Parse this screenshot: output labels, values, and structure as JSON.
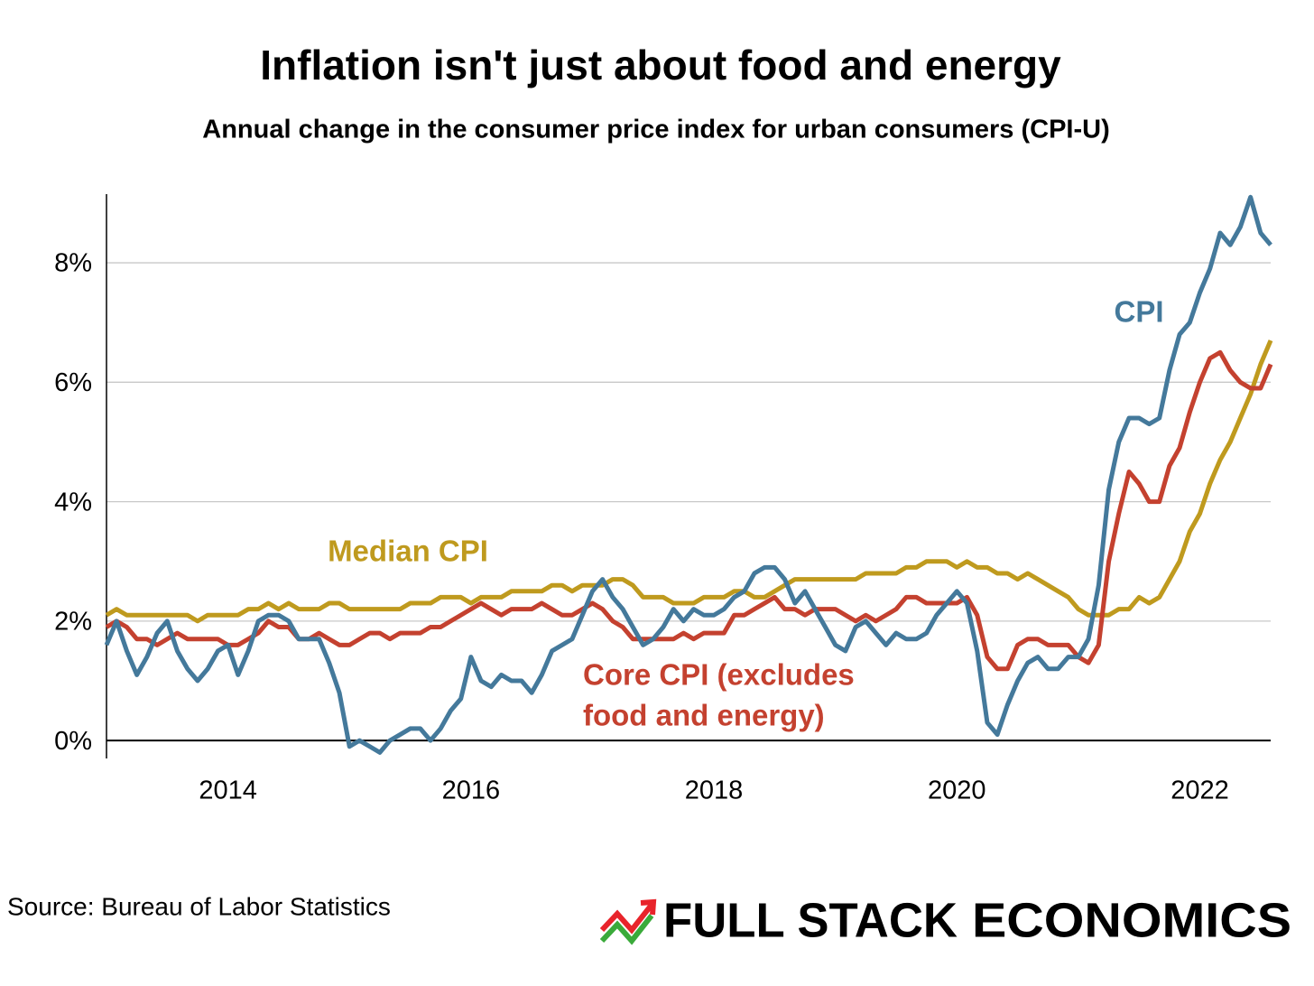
{
  "chart_data": {
    "type": "line",
    "title": "Inflation isn't just about food and energy",
    "subtitle": "Annual change in the consumer price index for urban consumers (CPI-U)",
    "source": "Source: Bureau of Labor Statistics",
    "logo": [
      "FULL STACK",
      "ECONOMICS"
    ],
    "logo_colors": [
      "#e8242b",
      "#3aaa3a"
    ],
    "xlim": [
      2013.0,
      2022.583
    ],
    "xticks": [
      2014,
      2016,
      2018,
      2020,
      2022
    ],
    "ylim": [
      -0.3,
      9.15
    ],
    "yticks": [
      {
        "value": 0,
        "label": "0%"
      },
      {
        "value": 2,
        "label": "2%"
      },
      {
        "value": 4,
        "label": "4%"
      },
      {
        "value": 6,
        "label": "6%"
      },
      {
        "value": 8,
        "label": "8%"
      }
    ],
    "grid": true,
    "x": [
      2013.0,
      2013.083,
      2013.167,
      2013.25,
      2013.333,
      2013.417,
      2013.5,
      2013.583,
      2013.667,
      2013.75,
      2013.833,
      2013.917,
      2014.0,
      2014.083,
      2014.167,
      2014.25,
      2014.333,
      2014.417,
      2014.5,
      2014.583,
      2014.667,
      2014.75,
      2014.833,
      2014.917,
      2015.0,
      2015.083,
      2015.167,
      2015.25,
      2015.333,
      2015.417,
      2015.5,
      2015.583,
      2015.667,
      2015.75,
      2015.833,
      2015.917,
      2016.0,
      2016.083,
      2016.167,
      2016.25,
      2016.333,
      2016.417,
      2016.5,
      2016.583,
      2016.667,
      2016.75,
      2016.833,
      2016.917,
      2017.0,
      2017.083,
      2017.167,
      2017.25,
      2017.333,
      2017.417,
      2017.5,
      2017.583,
      2017.667,
      2017.75,
      2017.833,
      2017.917,
      2018.0,
      2018.083,
      2018.167,
      2018.25,
      2018.333,
      2018.417,
      2018.5,
      2018.583,
      2018.667,
      2018.75,
      2018.833,
      2018.917,
      2019.0,
      2019.083,
      2019.167,
      2019.25,
      2019.333,
      2019.417,
      2019.5,
      2019.583,
      2019.667,
      2019.75,
      2019.833,
      2019.917,
      2020.0,
      2020.083,
      2020.167,
      2020.25,
      2020.333,
      2020.417,
      2020.5,
      2020.583,
      2020.667,
      2020.75,
      2020.833,
      2020.917,
      2021.0,
      2021.083,
      2021.167,
      2021.25,
      2021.333,
      2021.417,
      2021.5,
      2021.583,
      2021.667,
      2021.75,
      2021.833,
      2021.917,
      2022.0,
      2022.083,
      2022.167,
      2022.25,
      2022.333,
      2022.417,
      2022.5,
      2022.583
    ],
    "series": [
      {
        "name": "Median CPI",
        "color": "#bf9a1e",
        "values": [
          2.1,
          2.2,
          2.1,
          2.1,
          2.1,
          2.1,
          2.1,
          2.1,
          2.1,
          2.0,
          2.1,
          2.1,
          2.1,
          2.1,
          2.2,
          2.2,
          2.3,
          2.2,
          2.3,
          2.2,
          2.2,
          2.2,
          2.3,
          2.3,
          2.2,
          2.2,
          2.2,
          2.2,
          2.2,
          2.2,
          2.3,
          2.3,
          2.3,
          2.4,
          2.4,
          2.4,
          2.3,
          2.4,
          2.4,
          2.4,
          2.5,
          2.5,
          2.5,
          2.5,
          2.6,
          2.6,
          2.5,
          2.6,
          2.6,
          2.6,
          2.7,
          2.7,
          2.6,
          2.4,
          2.4,
          2.4,
          2.3,
          2.3,
          2.3,
          2.4,
          2.4,
          2.4,
          2.5,
          2.5,
          2.4,
          2.4,
          2.5,
          2.6,
          2.7,
          2.7,
          2.7,
          2.7,
          2.7,
          2.7,
          2.7,
          2.8,
          2.8,
          2.8,
          2.8,
          2.9,
          2.9,
          3.0,
          3.0,
          3.0,
          2.9,
          3.0,
          2.9,
          2.9,
          2.8,
          2.8,
          2.7,
          2.8,
          2.7,
          2.6,
          2.5,
          2.4,
          2.2,
          2.1,
          2.1,
          2.1,
          2.2,
          2.2,
          2.4,
          2.3,
          2.4,
          2.7,
          3.0,
          3.5,
          3.8,
          4.3,
          4.7,
          5.0,
          5.4,
          5.8,
          6.3,
          6.7
        ]
      },
      {
        "label_lines": [
          "Core CPI (excludes",
          "food and energy)"
        ],
        "color": "#c4412f",
        "values": [
          1.9,
          2.0,
          1.9,
          1.7,
          1.7,
          1.6,
          1.7,
          1.8,
          1.7,
          1.7,
          1.7,
          1.7,
          1.6,
          1.6,
          1.7,
          1.8,
          2.0,
          1.9,
          1.9,
          1.7,
          1.7,
          1.8,
          1.7,
          1.6,
          1.6,
          1.7,
          1.8,
          1.8,
          1.7,
          1.8,
          1.8,
          1.8,
          1.9,
          1.9,
          2.0,
          2.1,
          2.2,
          2.3,
          2.2,
          2.1,
          2.2,
          2.2,
          2.2,
          2.3,
          2.2,
          2.1,
          2.1,
          2.2,
          2.3,
          2.2,
          2.0,
          1.9,
          1.7,
          1.7,
          1.7,
          1.7,
          1.7,
          1.8,
          1.7,
          1.8,
          1.8,
          1.8,
          2.1,
          2.1,
          2.2,
          2.3,
          2.4,
          2.2,
          2.2,
          2.1,
          2.2,
          2.2,
          2.2,
          2.1,
          2.0,
          2.1,
          2.0,
          2.1,
          2.2,
          2.4,
          2.4,
          2.3,
          2.3,
          2.3,
          2.3,
          2.4,
          2.1,
          1.4,
          1.2,
          1.2,
          1.6,
          1.7,
          1.7,
          1.6,
          1.6,
          1.6,
          1.4,
          1.3,
          1.6,
          3.0,
          3.8,
          4.5,
          4.3,
          4.0,
          4.0,
          4.6,
          4.9,
          5.5,
          6.0,
          6.4,
          6.5,
          6.2,
          6.0,
          5.9,
          5.9,
          6.3
        ]
      },
      {
        "name": "CPI",
        "color": "#44799b",
        "values": [
          1.6,
          2.0,
          1.5,
          1.1,
          1.4,
          1.8,
          2.0,
          1.5,
          1.2,
          1.0,
          1.2,
          1.5,
          1.6,
          1.1,
          1.5,
          2.0,
          2.1,
          2.1,
          2.0,
          1.7,
          1.7,
          1.7,
          1.3,
          0.8,
          -0.1,
          0.0,
          -0.1,
          -0.2,
          0.0,
          0.1,
          0.2,
          0.2,
          0.0,
          0.2,
          0.5,
          0.7,
          1.4,
          1.0,
          0.9,
          1.1,
          1.0,
          1.0,
          0.8,
          1.1,
          1.5,
          1.6,
          1.7,
          2.1,
          2.5,
          2.7,
          2.4,
          2.2,
          1.9,
          1.6,
          1.7,
          1.9,
          2.2,
          2.0,
          2.2,
          2.1,
          2.1,
          2.2,
          2.4,
          2.5,
          2.8,
          2.9,
          2.9,
          2.7,
          2.3,
          2.5,
          2.2,
          1.9,
          1.6,
          1.5,
          1.9,
          2.0,
          1.8,
          1.6,
          1.8,
          1.7,
          1.7,
          1.8,
          2.1,
          2.3,
          2.5,
          2.3,
          1.5,
          0.3,
          0.1,
          0.6,
          1.0,
          1.3,
          1.4,
          1.2,
          1.2,
          1.4,
          1.4,
          1.7,
          2.6,
          4.2,
          5.0,
          5.4,
          5.4,
          5.3,
          5.4,
          6.2,
          6.8,
          7.0,
          7.5,
          7.9,
          8.5,
          8.3,
          8.6,
          9.1,
          8.5,
          8.3
        ]
      }
    ]
  }
}
